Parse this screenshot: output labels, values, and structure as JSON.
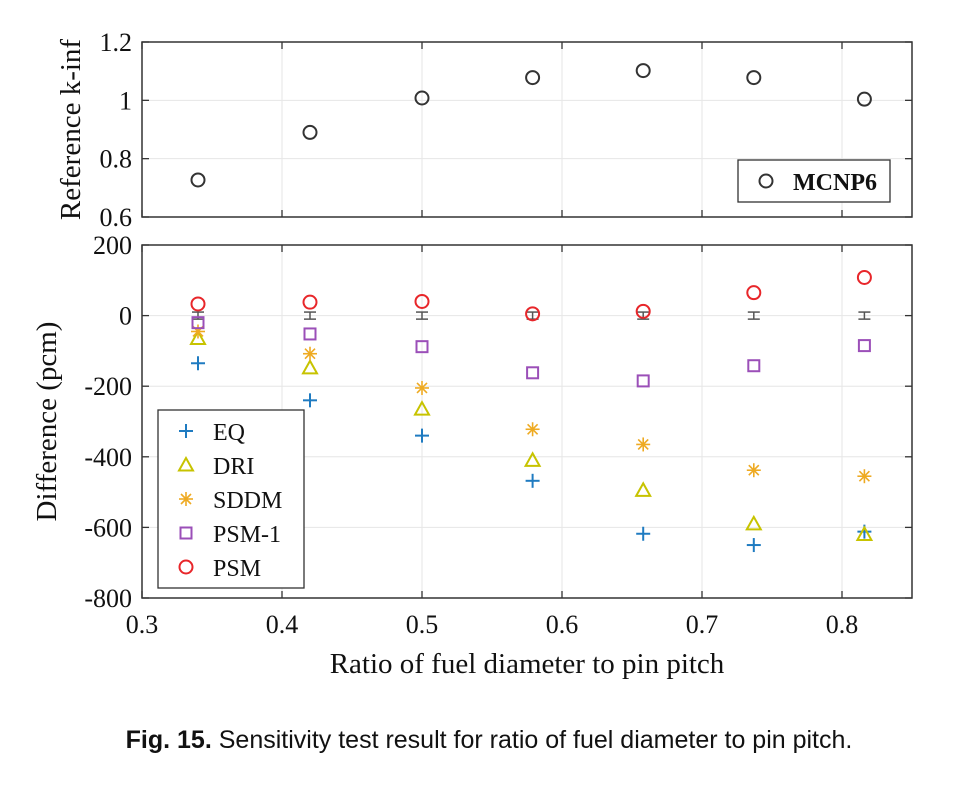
{
  "caption": {
    "label": "Fig. 15.",
    "text": "Sensitivity test result for ratio of fuel diameter to pin pitch."
  },
  "chart_data": [
    {
      "type": "scatter",
      "ylabel": "Reference k-inf",
      "xlim": [
        0.3,
        0.85
      ],
      "ylim": [
        0.6,
        1.2
      ],
      "xticks": [
        0.3,
        0.4,
        0.5,
        0.6,
        0.7,
        0.8
      ],
      "yticks": [
        "0.6",
        "0.8",
        "1",
        "1.2"
      ],
      "grid": true,
      "legend_position": "bottom-right",
      "series": [
        {
          "name": "MCNP6",
          "marker": "circle",
          "color": "#333333",
          "x": [
            0.34,
            0.42,
            0.5,
            0.579,
            0.658,
            0.737,
            0.816
          ],
          "y": [
            0.727,
            0.89,
            1.008,
            1.078,
            1.102,
            1.078,
            1.004
          ]
        }
      ]
    },
    {
      "type": "scatter",
      "xlabel": "Ratio of fuel diameter to pin pitch",
      "ylabel": "Difference (pcm)",
      "xlim": [
        0.3,
        0.85
      ],
      "ylim": [
        -800,
        200
      ],
      "xticks": [
        "0.3",
        "0.4",
        "0.5",
        "0.6",
        "0.7",
        "0.8"
      ],
      "yticks": [
        "-800",
        "-600",
        "-400",
        "-200",
        "0",
        "200"
      ],
      "grid": true,
      "legend_position": "bottom-left",
      "reference": {
        "x": [
          0.34,
          0.42,
          0.5,
          0.579,
          0.658,
          0.737,
          0.816
        ],
        "y": [
          0,
          0,
          0,
          0,
          0,
          0,
          0
        ],
        "error": [
          10,
          10,
          10,
          10,
          10,
          10,
          10
        ],
        "color": "#555555"
      },
      "series": [
        {
          "name": "EQ",
          "marker": "plus",
          "color": "#1f7bc1",
          "x": [
            0.34,
            0.42,
            0.5,
            0.579,
            0.658,
            0.737,
            0.816
          ],
          "y": [
            -135,
            -240,
            -340,
            -468,
            -618,
            -650,
            -612
          ]
        },
        {
          "name": "DRI",
          "marker": "triangle",
          "color": "#c7c300",
          "x": [
            0.34,
            0.42,
            0.5,
            0.579,
            0.658,
            0.737,
            0.816
          ],
          "y": [
            -65,
            -148,
            -265,
            -410,
            -495,
            -590,
            -620
          ]
        },
        {
          "name": "SDDM",
          "marker": "asterisk",
          "color": "#eeaa22",
          "x": [
            0.34,
            0.42,
            0.5,
            0.579,
            0.658,
            0.737,
            0.816
          ],
          "y": [
            -45,
            -108,
            -205,
            -322,
            -365,
            -438,
            -455
          ]
        },
        {
          "name": "PSM-1",
          "marker": "square",
          "color": "#9b4fb8",
          "x": [
            0.34,
            0.42,
            0.5,
            0.579,
            0.658,
            0.737,
            0.816
          ],
          "y": [
            -20,
            -52,
            -88,
            -162,
            -185,
            -142,
            -85
          ]
        },
        {
          "name": "PSM",
          "marker": "circle",
          "color": "#e8262a",
          "x": [
            0.34,
            0.42,
            0.5,
            0.579,
            0.658,
            0.737,
            0.816
          ],
          "y": [
            33,
            38,
            40,
            5,
            12,
            65,
            108
          ]
        }
      ]
    }
  ]
}
